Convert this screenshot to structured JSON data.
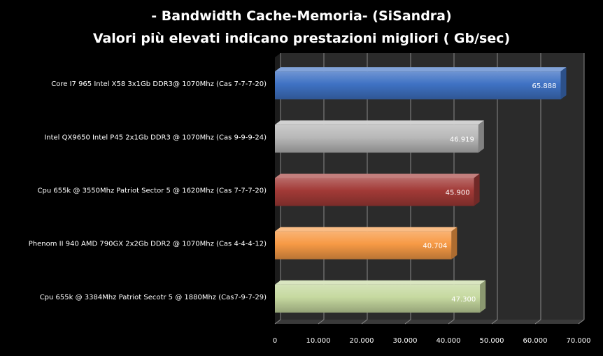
{
  "chart_data": {
    "type": "bar",
    "orientation": "horizontal",
    "title": "- Bandwidth Cache-Memoria- (SiSandra)",
    "subtitle": "Valori più elevati indicano prestazioni migliori ( Gb/sec)",
    "categories": [
      "Core I7 965 Intel X58 3x1Gb DDR3@ 1070Mhz (Cas 7-7-7-20)",
      "Intel QX9650 Intel P45 2x1Gb DDR3 @ 1070Mhz (Cas 9-9-9-24)",
      "Cpu 655k @ 3550Mhz Patriot Sector 5 @ 1620Mhz (Cas 7-7-7-20)",
      "Phenom II 940 AMD 790GX 2x2Gb DDR2 @ 1070Mhz (Cas 4-4-4-12)",
      "Cpu 655k @ 3384Mhz Patriot Secotr 5 @ 1880Mhz (Cas7-9-7-29)"
    ],
    "values": [
      65.888,
      46.919,
      45.9,
      40.704,
      47.3
    ],
    "value_labels": [
      "65.888",
      "46.919",
      "45.900",
      "40.704",
      "47.300"
    ],
    "bar_colors": [
      "#3f72c4",
      "#b8b8b8",
      "#a23a37",
      "#f79a45",
      "#c6d9a0"
    ],
    "xlim": [
      0,
      70
    ],
    "x_ticks": [
      0,
      10,
      20,
      30,
      40,
      50,
      60,
      70
    ],
    "x_tick_labels": [
      "0",
      "10.000",
      "20.000",
      "30.000",
      "40.000",
      "50.000",
      "60.000",
      "70.000"
    ],
    "grid": true,
    "legend": "none",
    "background": "#000000",
    "plot_background": "#2b2b2b"
  }
}
